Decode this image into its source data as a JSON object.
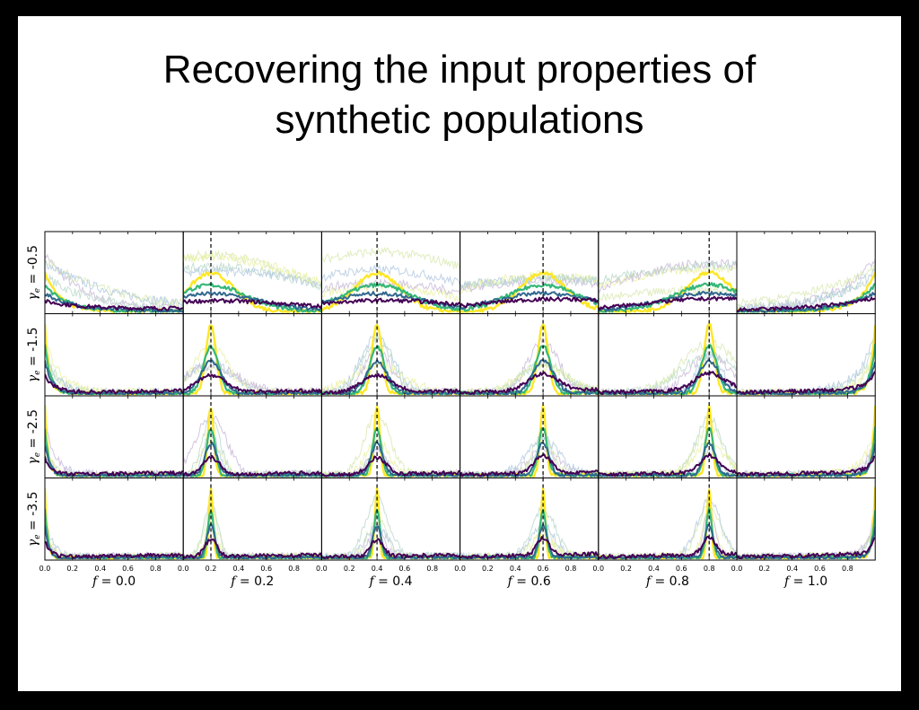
{
  "slide": {
    "title_line1": "Recovering the input properties of",
    "title_line2": "synthetic populations"
  },
  "chart_data": {
    "type": "line",
    "layout": "grid of histograms, 4 rows x 6 columns, shared axes",
    "xlim": [
      0.0,
      1.0
    ],
    "x_tick_labels": [
      "0.0",
      "0.2",
      "0.4",
      "0.6",
      "0.8"
    ],
    "columns": [
      {
        "label": "f",
        "value": "0.0",
        "true_f": 0.0,
        "marker": false
      },
      {
        "label": "f",
        "value": "0.2",
        "true_f": 0.2,
        "marker": true
      },
      {
        "label": "f",
        "value": "0.4",
        "true_f": 0.4,
        "marker": true
      },
      {
        "label": "f",
        "value": "0.6",
        "true_f": 0.6,
        "marker": true
      },
      {
        "label": "f",
        "value": "0.8",
        "true_f": 0.8,
        "marker": true
      },
      {
        "label": "f",
        "value": "1.0",
        "true_f": 1.0,
        "marker": false
      }
    ],
    "rows": [
      {
        "label": "γ",
        "subscript": "e",
        "value": "-0.5",
        "gamma": -0.5,
        "peak_width": 0.28
      },
      {
        "label": "γ",
        "subscript": "e",
        "value": "-1.5",
        "gamma": -1.5,
        "peak_width": 0.06
      },
      {
        "label": "γ",
        "subscript": "e",
        "value": "-2.5",
        "gamma": -2.5,
        "peak_width": 0.035
      },
      {
        "label": "γ",
        "subscript": "e",
        "value": "-3.5",
        "gamma": -3.5,
        "peak_width": 0.025
      }
    ],
    "series": [
      {
        "color": "#fde725",
        "peak_scale": 0.9,
        "width_scale": 0.6,
        "stroke": 2.4
      },
      {
        "color": "#35b779",
        "peak_scale": 0.62,
        "width_scale": 0.9,
        "stroke": 2.2
      },
      {
        "color": "#31688e",
        "peak_scale": 0.42,
        "width_scale": 1.25,
        "stroke": 2.0
      },
      {
        "color": "#440154",
        "peak_scale": 0.22,
        "width_scale": 1.8,
        "stroke": 2.0
      }
    ],
    "background_curves": {
      "colors": [
        "#c8b8d8",
        "#b8d8c8",
        "#d8e8b0",
        "#b0c8e0",
        "#e8f0a0"
      ],
      "count": 4
    },
    "true_value_marker": "dashed vertical line",
    "grid": false
  }
}
